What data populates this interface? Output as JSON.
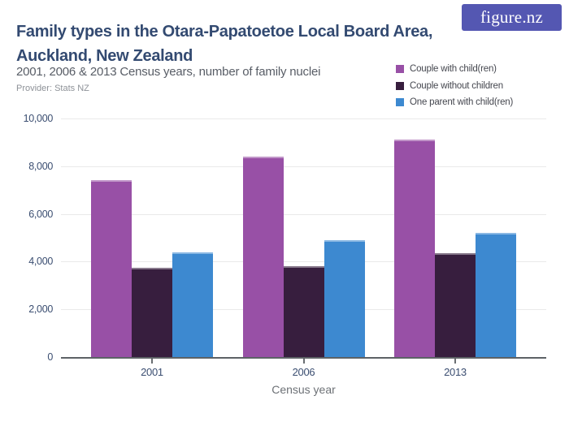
{
  "logo": {
    "text": "figure.nz",
    "bg_color": "#5457b2",
    "text_color": "#ffffff"
  },
  "header": {
    "title_lines": [
      "Family types in the Otara-Papatoetoe Local Board Area,",
      "Auckland, New Zealand"
    ],
    "subtitle": "2001, 2006 & 2013 Census years, number of family nuclei",
    "provider": "Provider: Stats NZ"
  },
  "chart_data": {
    "type": "bar",
    "title": "Family types in the Otara-Papatoetoe Local Board Area, Auckland, New Zealand",
    "subtitle": "2001, 2006 & 2013 Census years, number of family nuclei",
    "categories": [
      "2001",
      "2006",
      "2013"
    ],
    "series": [
      {
        "name": "Couple with child(ren)",
        "color": "#9850a6",
        "values": [
          7400,
          8400,
          9100
        ]
      },
      {
        "name": "Couple without children",
        "color": "#371e3e",
        "values": [
          3750,
          3800,
          4350
        ]
      },
      {
        "name": "One parent with child(ren)",
        "color": "#3d89d0",
        "values": [
          4400,
          4900,
          5200
        ]
      }
    ],
    "xlabel": "Census year",
    "ylabel": "",
    "ylim": [
      0,
      10000
    ],
    "yticks": [
      {
        "value": 0,
        "label": "0"
      },
      {
        "value": 2000,
        "label": "2,000"
      },
      {
        "value": 4000,
        "label": "4,000"
      },
      {
        "value": 6000,
        "label": "6,000"
      },
      {
        "value": 8000,
        "label": "8,000"
      },
      {
        "value": 10000,
        "label": "10,000"
      }
    ],
    "grid": true,
    "legend_position": "top-right"
  },
  "colors": {
    "title": "#334a71",
    "accent_purple": "#9850a6",
    "accent_plum": "#371e3e",
    "accent_blue": "#3d89d0",
    "brand_indigo": "#5457b2"
  }
}
